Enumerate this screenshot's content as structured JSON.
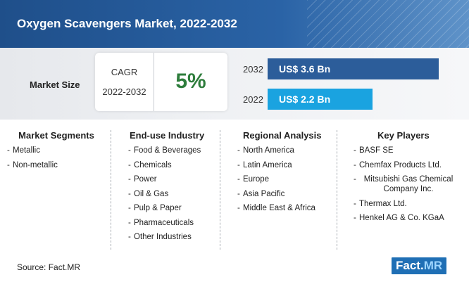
{
  "title": "Oxygen Scavengers Market, 2022-2032",
  "market_size": {
    "label": "Market Size",
    "cagr_label": "CAGR",
    "cagr_period": "2022-2032",
    "cagr_value": "5%"
  },
  "colors": {
    "header": "#2a63a6",
    "bar_2032": "#2c5d9a",
    "bar_2022": "#1aa3e0",
    "cagr_value": "#2e7d3c"
  },
  "chart_data": {
    "type": "bar",
    "orientation": "horizontal",
    "categories": [
      "2032",
      "2022"
    ],
    "values": [
      3.6,
      2.2
    ],
    "value_labels": [
      "US$ 3.6 Bn",
      "US$ 2.2 Bn"
    ],
    "unit": "US$ Bn"
  },
  "segments": [
    {
      "heading": "Market Segments",
      "items": [
        "Metallic",
        "Non-metallic"
      ]
    },
    {
      "heading": "End-use Industry",
      "items": [
        "Food & Beverages",
        "Chemicals",
        "Power",
        "Oil & Gas",
        "Pulp & Paper",
        "Pharmaceuticals",
        "Other Industries"
      ]
    },
    {
      "heading": "Regional Analysis",
      "items": [
        "North America",
        "Latin America",
        "Europe",
        "Asia Pacific",
        "Middle East & Africa"
      ]
    },
    {
      "heading": "Key Players",
      "items": [
        "BASF SE",
        "Chemfax Products Ltd.",
        "Mitsubishi Gas Chemical Company Inc.",
        "Thermax Ltd.",
        "Henkel AG & Co. KGaA"
      ]
    }
  ],
  "source": "Source: Fact.MR",
  "logo": {
    "part1": "Fact.",
    "part2": "MR"
  }
}
